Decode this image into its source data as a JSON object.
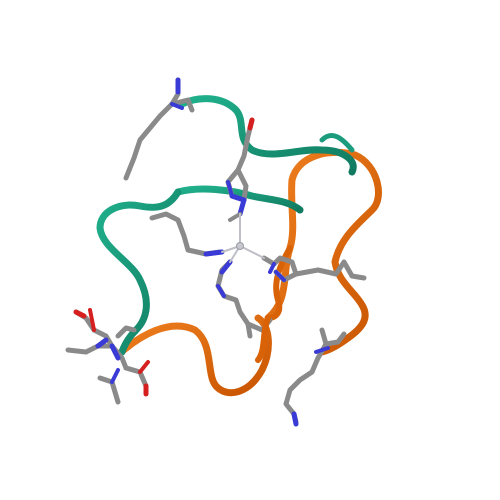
{
  "image": {
    "subject": "protein-structure-cartoon",
    "render_style": "ribbon-and-stick",
    "background": "#ffffff"
  },
  "colors": {
    "chain_a": "#1a9c7d",
    "chain_b": "#e76a0e",
    "carbon": "#8a8a8a",
    "nitrogen": "#3a3ad6",
    "oxygen": "#d62020",
    "metal": "#c8c8d0",
    "coordination": "#bfbfc8"
  }
}
